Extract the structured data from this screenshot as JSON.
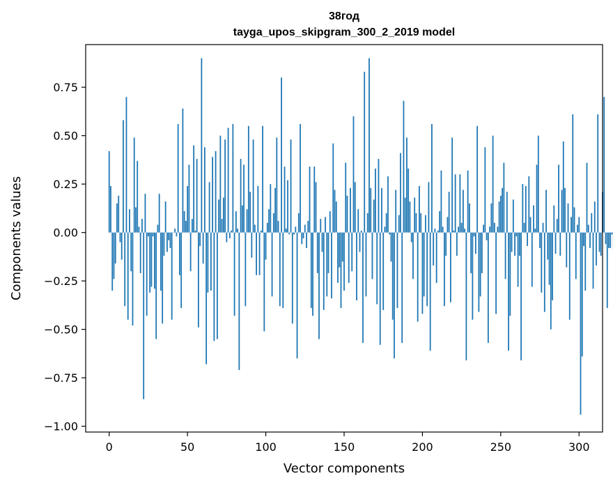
{
  "chart_data": {
    "type": "bar",
    "title": "38год",
    "subtitle": "tayga_upos_skipgram_300_2_2019 model",
    "xlabel": "Vector components",
    "ylabel": "Components values",
    "xlim": [
      -15,
      315
    ],
    "ylim": [
      -1.03,
      0.97
    ],
    "xticks": [
      0,
      50,
      100,
      150,
      200,
      250,
      300
    ],
    "yticks": [
      -1.0,
      -0.75,
      -0.5,
      -0.25,
      0.0,
      0.25,
      0.5,
      0.75
    ],
    "ytick_labels": [
      "−1.00",
      "−0.75",
      "−0.50",
      "−0.25",
      "0.00",
      "0.25",
      "0.50",
      "0.75"
    ],
    "bar_color": "#1f77b4",
    "grid": false,
    "values": [
      0.42,
      0.24,
      -0.3,
      -0.24,
      -0.16,
      0.15,
      0.19,
      -0.05,
      -0.14,
      0.58,
      -0.38,
      0.7,
      -0.45,
      0.12,
      -0.2,
      -0.48,
      0.49,
      0.13,
      0.37,
      0.03,
      -0.21,
      0.07,
      -0.86,
      0.2,
      -0.43,
      -0.02,
      -0.31,
      -0.28,
      -0.02,
      -0.29,
      -0.55,
      0.04,
      0.2,
      -0.3,
      -0.47,
      -0.12,
      0.16,
      -0.1,
      -0.04,
      -0.08,
      -0.45,
      0.0,
      0.02,
      -0.02,
      0.56,
      -0.22,
      -0.39,
      0.64,
      0.11,
      0.06,
      0.24,
      0.35,
      -0.2,
      0.07,
      0.45,
      0.01,
      0.38,
      -0.49,
      -0.07,
      0.9,
      -0.16,
      0.44,
      -0.68,
      -0.31,
      0.26,
      -0.3,
      0.39,
      -0.56,
      0.42,
      -0.55,
      0.17,
      0.5,
      0.07,
      0.18,
      0.48,
      -0.05,
      0.54,
      -0.03,
      0.01,
      0.56,
      -0.43,
      0.11,
      0.02,
      -0.71,
      0.38,
      0.14,
      0.35,
      -0.38,
      0.12,
      0.55,
      0.21,
      -0.13,
      0.48,
      0.04,
      -0.22,
      0.24,
      -0.22,
      0.01,
      0.55,
      -0.51,
      -0.14,
      0.05,
      0.12,
      0.25,
      -0.33,
      0.1,
      0.23,
      0.49,
      0.06,
      -0.38,
      0.8,
      -0.39,
      0.34,
      0.02,
      0.27,
      -0.01,
      0.48,
      -0.47,
      -0.01,
      0.03,
      -0.65,
      0.1,
      0.56,
      -0.06,
      -0.03,
      0.04,
      -0.08,
      0.06,
      0.34,
      -0.39,
      -0.43,
      0.34,
      0.26,
      -0.21,
      -0.55,
      0.07,
      -0.1,
      -0.4,
      0.08,
      -0.33,
      -0.21,
      0.11,
      -0.34,
      0.46,
      0.22,
      0.16,
      -0.26,
      -0.18,
      -0.39,
      -0.15,
      -0.3,
      0.36,
      0.19,
      -0.26,
      0.23,
      -0.2,
      0.6,
      0.26,
      -0.35,
      0.12,
      -0.1,
      0.01,
      -0.57,
      0.83,
      -0.33,
      0.1,
      0.9,
      0.23,
      -0.24,
      0.17,
      0.33,
      -0.37,
      0.38,
      -0.58,
      0.23,
      -0.4,
      0.03,
      0.1,
      0.29,
      -0.01,
      -0.15,
      -0.45,
      -0.65,
      0.22,
      -0.39,
      0.09,
      0.41,
      -0.57,
      0.68,
      0.18,
      0.49,
      0.33,
      0.16,
      -0.05,
      -0.24,
      0.18,
      0.1,
      -0.46,
      0.24,
      0.1,
      -0.42,
      -0.33,
      0.09,
      -0.38,
      0.26,
      -0.61,
      0.56,
      -0.17,
      0.02,
      -0.26,
      0.01,
      0.11,
      0.32,
      0.03,
      -0.38,
      -0.12,
      0.08,
      0.21,
      -0.36,
      0.49,
      0.01,
      0.3,
      -0.12,
      0.03,
      0.3,
      0.05,
      0.22,
      0.02,
      -0.66,
      0.32,
      0.15,
      -0.21,
      -0.45,
      -0.02,
      -0.11,
      0.55,
      -0.41,
      -0.33,
      -0.21,
      0.04,
      0.44,
      -0.04,
      -0.57,
      0.03,
      0.15,
      0.5,
      0.05,
      -0.42,
      0.03,
      0.16,
      0.19,
      0.23,
      0.36,
      -0.24,
      0.21,
      -0.61,
      -0.43,
      -0.1,
      0.17,
      -0.12,
      -0.02,
      -0.28,
      -0.12,
      -0.66,
      0.25,
      0.05,
      0.24,
      -0.07,
      0.29,
      0.08,
      -0.28,
      0.14,
      0.02,
      0.35,
      0.5,
      -0.08,
      -0.31,
      0.05,
      -0.41,
      0.22,
      -0.14,
      -0.27,
      -0.5,
      -0.35,
      0.14,
      -0.11,
      0.07,
      0.35,
      -0.12,
      0.22,
      0.47,
      0.23,
      -0.18,
      0.15,
      -0.45,
      0.08,
      0.61,
      0.13,
      -0.24,
      0.04,
      0.08,
      -0.94,
      -0.64,
      -0.07,
      -0.3,
      0.36,
      0.04,
      -0.08,
      0.1,
      -0.29,
      0.16,
      -0.17,
      0.61,
      -0.1,
      -0.12,
      0.21,
      0.7,
      -0.06,
      -0.39,
      -0.08,
      -0.08,
      -0.01,
      -0.09,
      -0.13
    ]
  }
}
